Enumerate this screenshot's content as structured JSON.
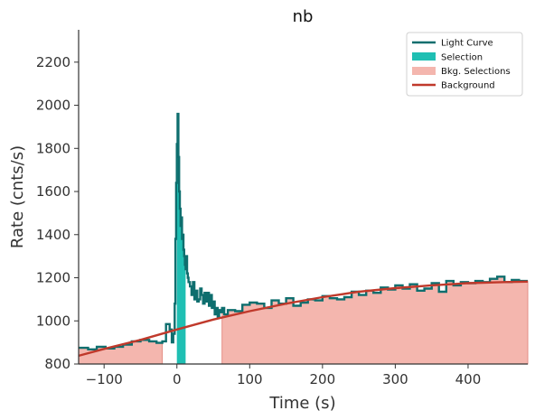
{
  "chart_data": {
    "type": "line",
    "title": "nb",
    "xlabel": "Time (s)",
    "ylabel": "Rate (cnts/s)",
    "xlim": [
      -135,
      482
    ],
    "ylim": [
      800,
      2350
    ],
    "x_ticks": [
      -100,
      0,
      100,
      200,
      300,
      400
    ],
    "x_tick_labels": [
      "−100",
      "0",
      "100",
      "200",
      "300",
      "400"
    ],
    "y_ticks": [
      800,
      1000,
      1200,
      1400,
      1600,
      1800,
      2000,
      2200
    ],
    "y_tick_labels": [
      "800",
      "1000",
      "1200",
      "1400",
      "1600",
      "1800",
      "2000",
      "2200"
    ],
    "grid": false,
    "legend_position": "top-right",
    "colors": {
      "light_curve": "#0e6e6e",
      "selection": "#1fbfb3",
      "bkg_selections": "#f4b6ae",
      "bkg_selections_edge": "#e58e85",
      "background": "#c0392b"
    },
    "legend": [
      {
        "label": "Light Curve",
        "kind": "line",
        "color": "#0e6e6e"
      },
      {
        "label": "Selection",
        "kind": "patch",
        "color": "#1fbfb3"
      },
      {
        "label": "Bkg. Selections",
        "kind": "patch",
        "color": "#f4b6ae"
      },
      {
        "label": "Background",
        "kind": "line",
        "color": "#c0392b"
      }
    ],
    "light_curve": {
      "x": [
        -135,
        -122,
        -110,
        -98,
        -86,
        -74,
        -62,
        -50,
        -38,
        -28,
        -20,
        -15,
        -10,
        -7,
        -5,
        -3,
        -2,
        -1,
        0,
        1,
        2,
        3,
        4,
        5,
        6,
        7,
        8,
        9,
        10,
        11,
        12,
        13,
        14,
        15,
        16,
        18,
        20,
        22,
        24,
        26,
        28,
        30,
        32,
        34,
        36,
        38,
        40,
        42,
        44,
        46,
        48,
        50,
        52,
        54,
        56,
        58,
        60,
        62,
        65,
        70,
        80,
        90,
        100,
        110,
        120,
        130,
        140,
        150,
        160,
        170,
        180,
        190,
        200,
        210,
        220,
        230,
        240,
        250,
        260,
        270,
        280,
        290,
        300,
        310,
        320,
        330,
        340,
        350,
        360,
        370,
        380,
        390,
        400,
        410,
        420,
        430,
        440,
        450,
        460,
        470,
        482
      ],
      "y": [
        875,
        868,
        880,
        872,
        880,
        890,
        905,
        912,
        905,
        898,
        905,
        985,
        960,
        900,
        940,
        1080,
        1380,
        1640,
        1820,
        1960,
        1760,
        1600,
        1520,
        1440,
        1480,
        1380,
        1400,
        1330,
        1300,
        1260,
        1240,
        1300,
        1220,
        1200,
        1180,
        1160,
        1120,
        1180,
        1100,
        1140,
        1090,
        1100,
        1150,
        1120,
        1080,
        1130,
        1090,
        1130,
        1070,
        1120,
        1060,
        1090,
        1030,
        1060,
        1020,
        1050,
        1040,
        1060,
        1030,
        1050,
        1045,
        1075,
        1085,
        1080,
        1060,
        1095,
        1080,
        1105,
        1070,
        1085,
        1100,
        1095,
        1115,
        1105,
        1100,
        1110,
        1135,
        1120,
        1140,
        1130,
        1155,
        1145,
        1165,
        1150,
        1170,
        1140,
        1150,
        1175,
        1135,
        1185,
        1165,
        1180,
        1175,
        1185,
        1180,
        1195,
        1205,
        1180,
        1190,
        1185,
        1185
      ]
    },
    "selection": {
      "x_start": 0,
      "x_end": 12
    },
    "bkg_selections": [
      {
        "x_start": -135,
        "x_end": -20
      },
      {
        "x_start": 62,
        "x_end": 482
      }
    ],
    "background_model": {
      "x": [
        -135,
        -100,
        -50,
        0,
        50,
        100,
        150,
        200,
        250,
        300,
        350,
        400,
        450,
        482
      ],
      "y": [
        838,
        870,
        912,
        960,
        1006,
        1045,
        1080,
        1110,
        1135,
        1152,
        1165,
        1175,
        1180,
        1182
      ]
    }
  }
}
